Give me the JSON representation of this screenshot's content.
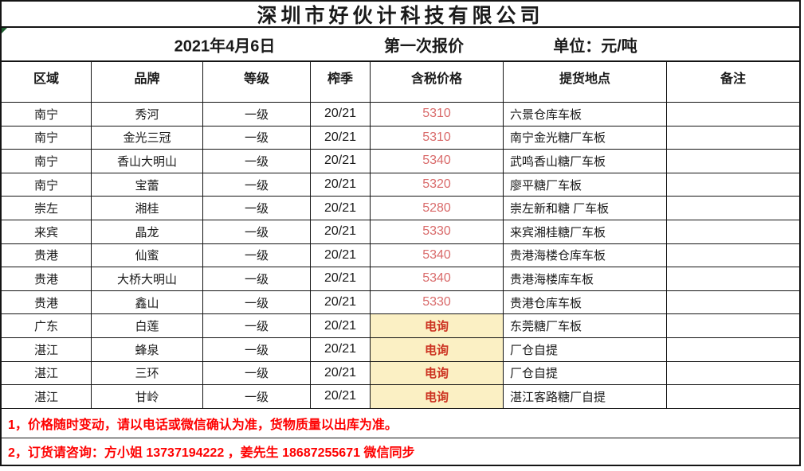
{
  "company": {
    "title": "深圳市好伙计科技有限公司"
  },
  "meta": {
    "date": "2021年4月6日",
    "round": "第一次报价",
    "unit_label": "单位：元/吨"
  },
  "table": {
    "headers": [
      "区域",
      "品牌",
      "等级",
      "榨季",
      "含税价格",
      "提货地点",
      "备注"
    ],
    "rows": [
      {
        "region": "南宁",
        "brand": "秀河",
        "grade": "一级",
        "season": "20/21",
        "price": "5310",
        "price_type": "number",
        "location": "六景仓库车板",
        "note": ""
      },
      {
        "region": "南宁",
        "brand": "金光三冠",
        "grade": "一级",
        "season": "20/21",
        "price": "5310",
        "price_type": "number",
        "location": "南宁金光糖厂车板",
        "note": ""
      },
      {
        "region": "南宁",
        "brand": "香山大明山",
        "grade": "一级",
        "season": "20/21",
        "price": "5340",
        "price_type": "number",
        "location": "武鸣香山糖厂车板",
        "note": ""
      },
      {
        "region": "南宁",
        "brand": "宝蕾",
        "grade": "一级",
        "season": "20/21",
        "price": "5320",
        "price_type": "number",
        "location": "廖平糖厂车板",
        "note": ""
      },
      {
        "region": "崇左",
        "brand": "湘桂",
        "grade": "一级",
        "season": "20/21",
        "price": "5280",
        "price_type": "number",
        "location": "崇左新和糖 厂车板",
        "note": ""
      },
      {
        "region": "来宾",
        "brand": "晶龙",
        "grade": "一级",
        "season": "20/21",
        "price": "5330",
        "price_type": "number",
        "location": "来宾湘桂糖厂车板",
        "note": ""
      },
      {
        "region": "贵港",
        "brand": "仙蜜",
        "grade": "一级",
        "season": "20/21",
        "price": "5340",
        "price_type": "number",
        "location": "贵港海楼仓库车板",
        "note": ""
      },
      {
        "region": "贵港",
        "brand": "大桥大明山",
        "grade": "一级",
        "season": "20/21",
        "price": "5340",
        "price_type": "number",
        "location": "贵港海楼库车板",
        "note": ""
      },
      {
        "region": "贵港",
        "brand": "鑫山",
        "grade": "一级",
        "season": "20/21",
        "price": "5330",
        "price_type": "number",
        "location": "贵港仓库车板",
        "note": ""
      },
      {
        "region": "广东",
        "brand": "白莲",
        "grade": "一级",
        "season": "20/21",
        "price": "电询",
        "price_type": "inquiry",
        "location": "东莞糖厂车板",
        "note": ""
      },
      {
        "region": "湛江",
        "brand": "蜂泉",
        "grade": "一级",
        "season": "20/21",
        "price": "电询",
        "price_type": "inquiry",
        "location": "厂仓自提",
        "note": ""
      },
      {
        "region": "湛江",
        "brand": "三环",
        "grade": "一级",
        "season": "20/21",
        "price": "电询",
        "price_type": "inquiry",
        "location": "厂仓自提",
        "note": ""
      },
      {
        "region": "湛江",
        "brand": "甘岭",
        "grade": "一级",
        "season": "20/21",
        "price": "电询",
        "price_type": "inquiry",
        "location": "湛江客路糖厂自提",
        "note": ""
      }
    ]
  },
  "notes": [
    "1，价格随时变动，请以电话或微信确认为准，货物质量以出库为准。",
    "2，订货请咨询：方小姐 13737194222 ，姜先生 18687255671  微信同步"
  ],
  "colors": {
    "price-red": "#d96a6a",
    "inquiry-red": "#cc3322",
    "inquiry-bg": "#fbf0c4",
    "note-red": "#fe0000",
    "marker-green": "#1f6032"
  }
}
